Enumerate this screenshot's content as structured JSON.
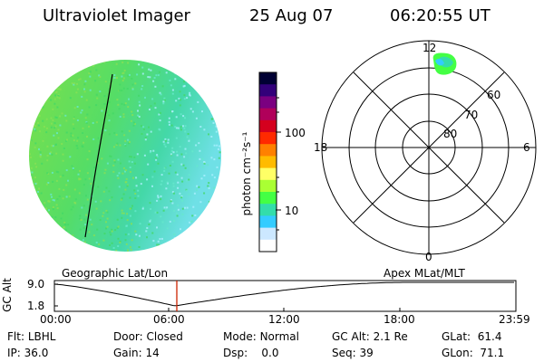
{
  "header": {
    "instrument": "Ultraviolet Imager",
    "date": "25 Aug 07",
    "time": "06:20:55 UT"
  },
  "colorbar": {
    "unit_label": "photon cm⁻²s⁻¹",
    "ticks": [
      "100",
      "10"
    ],
    "colors": [
      "#000033",
      "#33007a",
      "#7a0080",
      "#b0005a",
      "#d4001e",
      "#ff2a00",
      "#ff8000",
      "#ffbb00",
      "#ffff66",
      "#aaff33",
      "#44ff44",
      "#33ddaa",
      "#33ccff",
      "#cce8ff",
      "#ffffff"
    ]
  },
  "polar_plot": {
    "mlt_labels": {
      "top": "12",
      "left": "18",
      "right": "6",
      "bottom": "0"
    },
    "lat_labels": [
      "60",
      "70",
      "80"
    ]
  },
  "timeline": {
    "ylabel": "GC Alt",
    "y_ticks": [
      "9.0",
      "1.8"
    ],
    "left_title": "Geographic Lat/Lon",
    "right_title": "Apex MLat/MLT",
    "x_ticks": [
      "00:00",
      "06:00",
      "12:00",
      "18:00",
      "23:59"
    ],
    "marker_color": "#cc2200"
  },
  "status": {
    "row1": [
      {
        "label": "Flt:",
        "value": "LBHL"
      },
      {
        "label": "Door:",
        "value": "Closed"
      },
      {
        "label": "Mode:",
        "value": "Normal"
      },
      {
        "label": "GC Alt:",
        "value": "2.1 Re"
      },
      {
        "label": "GLat:",
        "value": "61.4"
      }
    ],
    "row2": [
      {
        "label": "IP:",
        "value": "36.0"
      },
      {
        "label": "Gain:",
        "value": "14"
      },
      {
        "label": "Dsp:",
        "value": "0.0"
      },
      {
        "label": "Seq:",
        "value": "39"
      },
      {
        "label": "GLon:",
        "value": "71.1"
      }
    ]
  }
}
